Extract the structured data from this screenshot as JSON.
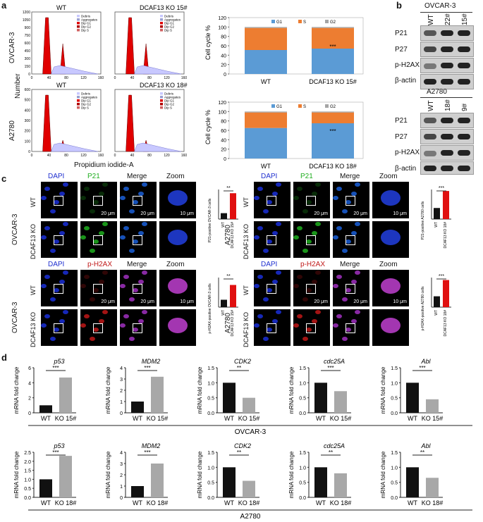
{
  "panels": {
    "a": "a",
    "b": "b",
    "c": "c",
    "d": "d"
  },
  "flow": {
    "row_labels": [
      "OVCAR-3",
      "A2780"
    ],
    "number_label": "Number",
    "x_label": "Propidium iodide-A",
    "titles": [
      [
        "WT",
        "DCAF13 KO 15#"
      ],
      [
        "WT",
        "DCAF13 KO 18#"
      ]
    ],
    "legend": [
      "Debris",
      "Aggregates",
      "Dip G1",
      "Dip G2",
      "Dip S"
    ],
    "y_ticks_top": [
      "1200",
      "1050",
      "900",
      "750",
      "600",
      "450",
      "300",
      "150",
      "0"
    ],
    "y_ticks_bottom": [
      "600",
      "500",
      "400",
      "300",
      "200",
      "100",
      "0"
    ],
    "x_ticks": [
      "0",
      "40",
      "80",
      "120",
      "160"
    ]
  },
  "cellcycle": {
    "ylabel": "Cell cycle %",
    "legend": [
      "G1",
      "S",
      "G2"
    ],
    "colors": {
      "G1": "#5b9bd5",
      "S": "#ed7d31",
      "G2": "#a5a5a5"
    },
    "sig": "***",
    "yticks": [
      "0",
      "20",
      "40",
      "60",
      "80",
      "100",
      "120"
    ]
  },
  "chart_data": [
    {
      "type": "bar",
      "stacked": true,
      "categories": [
        "WT",
        "DCAF13 KO 15#"
      ],
      "ylabel": "Cell cycle %",
      "ylim": [
        0,
        120
      ],
      "series": [
        {
          "name": "G1",
          "values": [
            51,
            54
          ]
        },
        {
          "name": "S",
          "values": [
            47,
            44
          ]
        },
        {
          "name": "G2",
          "values": [
            2,
            2
          ]
        }
      ]
    },
    {
      "type": "bar",
      "stacked": true,
      "categories": [
        "WT",
        "DCAF13 KO 18#"
      ],
      "ylabel": "Cell cycle %",
      "ylim": [
        0,
        120
      ],
      "series": [
        {
          "name": "G1",
          "values": [
            65,
            75
          ]
        },
        {
          "name": "S",
          "values": [
            33,
            23
          ]
        },
        {
          "name": "G2",
          "values": [
            2,
            2
          ]
        }
      ]
    },
    {
      "type": "bar",
      "categories": [
        "WT",
        "DCAF13 KO 15#"
      ],
      "ylabel": "P21-positive OVCAR-3 cells",
      "ylim": [
        0,
        40
      ],
      "values": [
        8,
        35
      ]
    },
    {
      "type": "bar",
      "categories": [
        "WT",
        "DCAF13 KO 18#"
      ],
      "ylabel": "P21-positive A2780 cells",
      "ylim": [
        0,
        40
      ],
      "values": [
        15,
        38
      ]
    },
    {
      "type": "bar",
      "categories": [
        "WT",
        "DCAF13 KO 15#"
      ],
      "ylabel": "p-H2AX-positive OVCAR-3 cells",
      "ylim": [
        0,
        80
      ],
      "values": [
        20,
        60
      ]
    },
    {
      "type": "bar",
      "categories": [
        "WT",
        "DCAF13 KO 18#"
      ],
      "ylabel": "p-H2AX-positive A2780 cells",
      "ylim": [
        0,
        60
      ],
      "values": [
        22,
        55
      ]
    }
  ],
  "blot": {
    "ovcar": {
      "cell": "OVCAR-3",
      "lanes": [
        "WT",
        "22#",
        "15#"
      ],
      "rows": [
        "P21",
        "P27",
        "p-H2AX",
        "β-actin"
      ]
    },
    "a2780": {
      "cell": "A2780",
      "lanes": [
        "WT",
        "18#",
        "9#"
      ],
      "rows": [
        "P21",
        "P27",
        "p-H2AX",
        "β-actin"
      ]
    }
  },
  "if": {
    "cols_p21": [
      "DAPI",
      "P21",
      "Merge",
      "Zoom"
    ],
    "cols_ph2ax": [
      "DAPI",
      "p-H2AX",
      "Merge",
      "Zoom"
    ],
    "wt": "WT",
    "ko": "DCAF13 KO",
    "cells": [
      "OVCAR-3",
      "A2780"
    ],
    "scale20": "20 μm",
    "scale10": "10 μm",
    "sig2": "**",
    "sig3": "***",
    "bar_labels_ovcar": [
      "WT",
      "DCAF13 KO 15#"
    ],
    "bar_labels_a2780": [
      "WT",
      "DCAF13 KO 18#"
    ],
    "ylabels": [
      "P21-positive OVCAR-3 cells",
      "P21-positive A2780 cells",
      "p-H2AX-positive OVCAR-3 cells",
      "p-H2AX-positive A2780 cells"
    ]
  },
  "qpcr": {
    "ylabel": "mRNA fold change",
    "genes": [
      "p53",
      "MDM2",
      "CDK2",
      "cdc25A",
      "Abl"
    ],
    "ovcar": {
      "cell": "OVCAR-3",
      "cats": [
        "WT",
        "KO 15#"
      ],
      "values": [
        [
          1.0,
          4.7
        ],
        [
          1.0,
          3.2
        ],
        [
          1.0,
          0.5
        ],
        [
          1.0,
          0.72
        ],
        [
          1.0,
          0.45
        ]
      ],
      "sig": [
        "***",
        "***",
        "**",
        "***",
        "***"
      ],
      "ymax": [
        6,
        4,
        1.5,
        1.5,
        1.5
      ],
      "ticks": [
        [
          "0",
          "2",
          "4",
          "6"
        ],
        [
          "0",
          "1",
          "2",
          "3",
          "4"
        ],
        [
          "0.0",
          "0.5",
          "1.0",
          "1.5"
        ],
        [
          "0.0",
          "0.5",
          "1.0",
          "1.5"
        ],
        [
          "0.0",
          "0.5",
          "1.0",
          "1.5"
        ]
      ]
    },
    "a2780": {
      "cell": "A2780",
      "cats": [
        "WT",
        "KO 18#"
      ],
      "values": [
        [
          1.0,
          2.3
        ],
        [
          1.0,
          3.0
        ],
        [
          1.0,
          0.55
        ],
        [
          1.0,
          0.8
        ],
        [
          1.0,
          0.65
        ]
      ],
      "sig": [
        "***",
        "***",
        "**",
        "**",
        "**"
      ],
      "ymax": [
        2.5,
        4,
        1.5,
        1.5,
        1.5
      ],
      "ticks": [
        [
          "0.0",
          "0.5",
          "1.0",
          "1.5",
          "2.0",
          "2.5"
        ],
        [
          "0",
          "1",
          "2",
          "3",
          "4"
        ],
        [
          "0.0",
          "0.5",
          "1.0",
          "1.5"
        ],
        [
          "0.0",
          "0.5",
          "1.0",
          "1.5"
        ],
        [
          "0.0",
          "0.5",
          "1.0",
          "1.5"
        ]
      ]
    }
  }
}
